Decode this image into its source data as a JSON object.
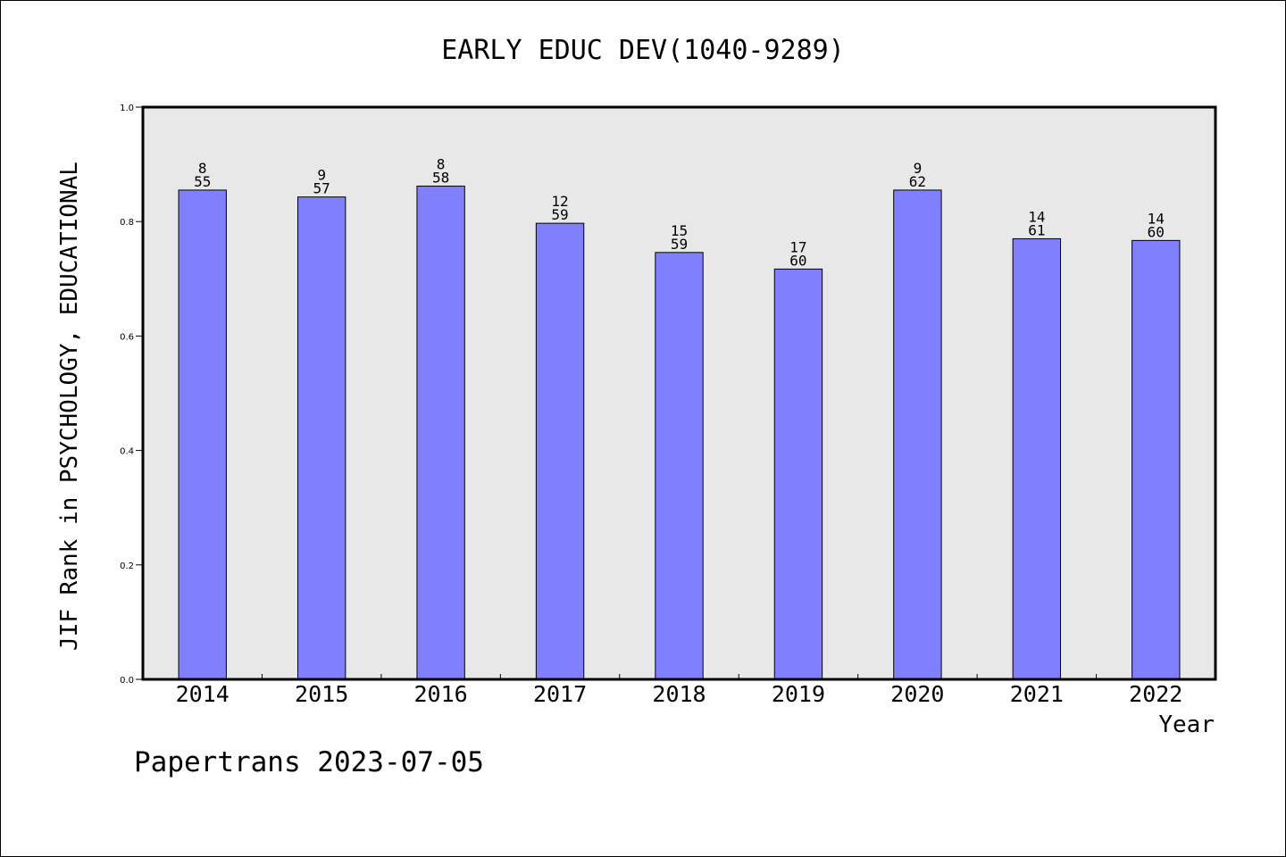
{
  "chart_data": {
    "type": "bar",
    "title": "EARLY EDUC DEV(1040-9289)",
    "xlabel": "Year",
    "ylabel": "JIF Rank in PSYCHOLOGY, EDUCATIONAL",
    "ylim": [
      0,
      1.0
    ],
    "yticks": [
      "0.0",
      "0.2",
      "0.4",
      "0.6",
      "0.8",
      "1.0"
    ],
    "grid": false,
    "categories": [
      "2014",
      "2015",
      "2016",
      "2017",
      "2018",
      "2019",
      "2020",
      "2021",
      "2022"
    ],
    "values": [
      0.855,
      0.843,
      0.862,
      0.797,
      0.746,
      0.717,
      0.855,
      0.77,
      0.767
    ],
    "rank": [
      "8",
      "9",
      "8",
      "12",
      "15",
      "17",
      "9",
      "14",
      "14"
    ],
    "total": [
      "55",
      "57",
      "58",
      "59",
      "59",
      "60",
      "62",
      "61",
      "60"
    ],
    "bar_color": "#8080ff",
    "plot_background": "#e8e8e8"
  },
  "footer": "Papertrans 2023-07-05"
}
